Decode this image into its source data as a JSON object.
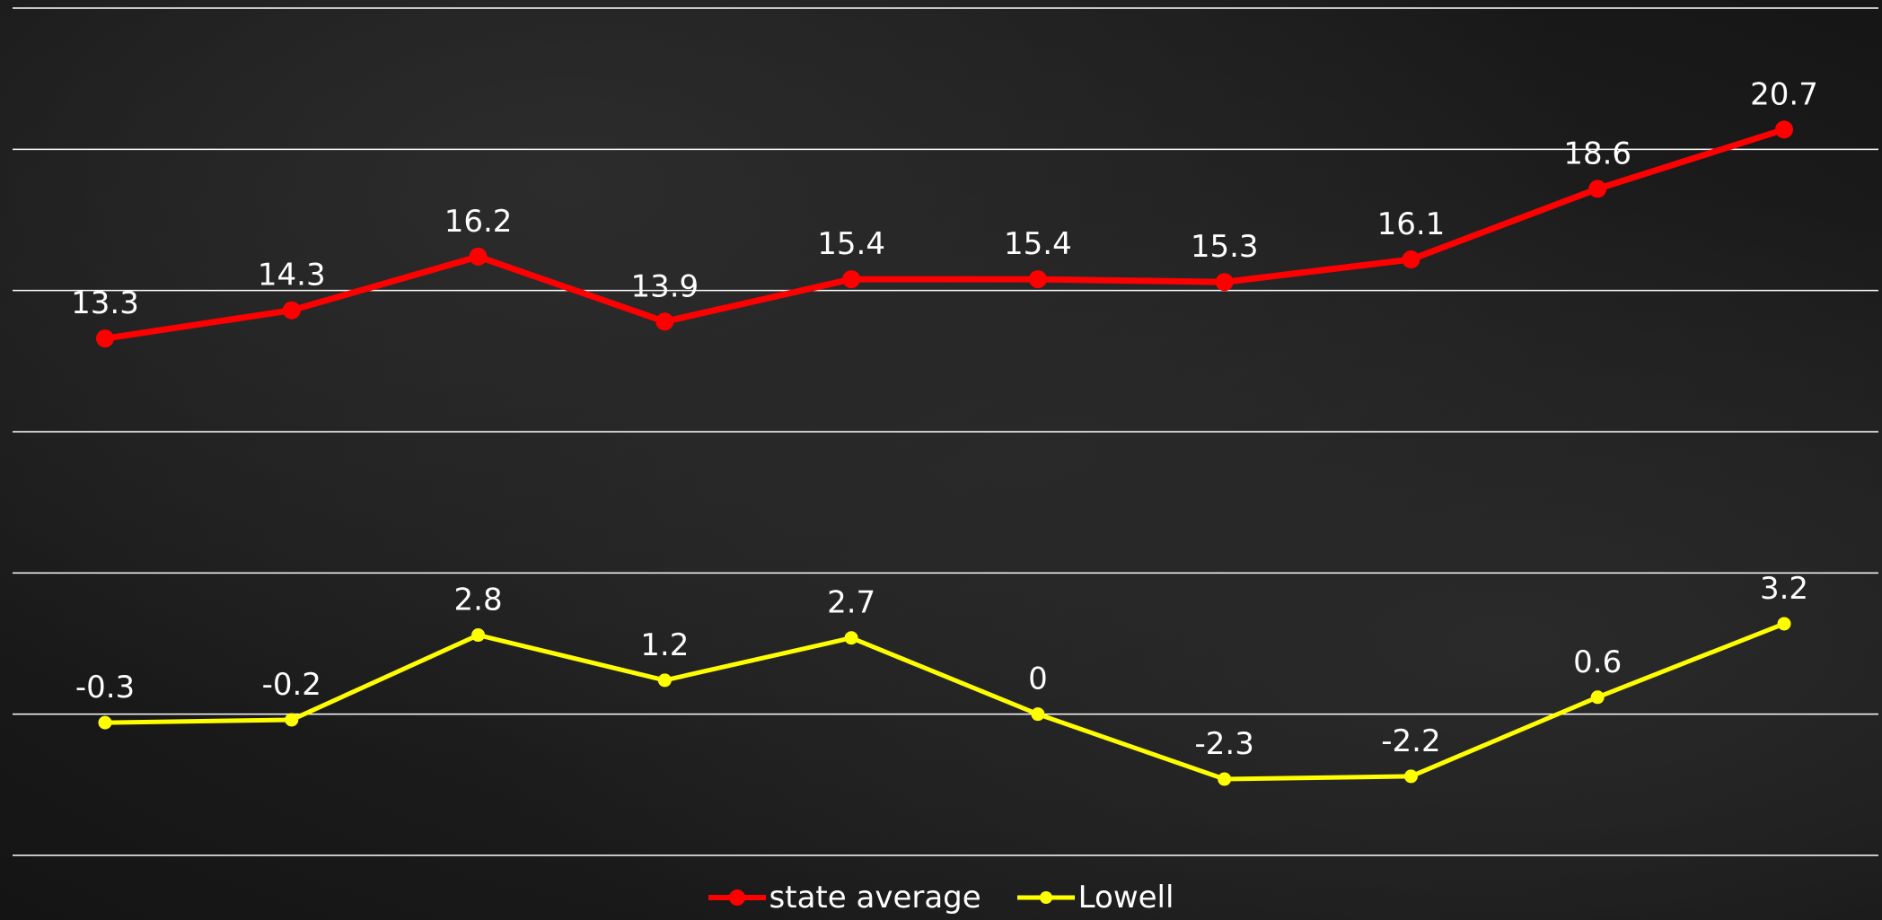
{
  "chart_data": {
    "type": "line",
    "title": "",
    "xlabel": "",
    "ylabel": "",
    "ylim": [
      -5,
      25
    ],
    "grid": true,
    "legend_position": "bottom-center",
    "series": [
      {
        "name": "state average",
        "color": "#ff0000",
        "values": [
          13.3,
          14.3,
          16.2,
          13.9,
          15.4,
          15.4,
          15.3,
          16.1,
          18.6,
          20.7
        ],
        "labels": [
          "13.3",
          "14.3",
          "16.2",
          "13.9",
          "15.4",
          "15.4",
          "15.3",
          "16.1",
          "18.6",
          "20.7"
        ]
      },
      {
        "name": "Lowell",
        "color": "#ffff00",
        "values": [
          -0.3,
          -0.2,
          2.8,
          1.2,
          2.7,
          0,
          -2.3,
          -2.2,
          0.6,
          3.2
        ],
        "labels": [
          "-0.3",
          "-0.2",
          "2.8",
          "1.2",
          "2.7",
          "0",
          "-2.3",
          "-2.2",
          "0.6",
          "3.2"
        ]
      }
    ]
  }
}
